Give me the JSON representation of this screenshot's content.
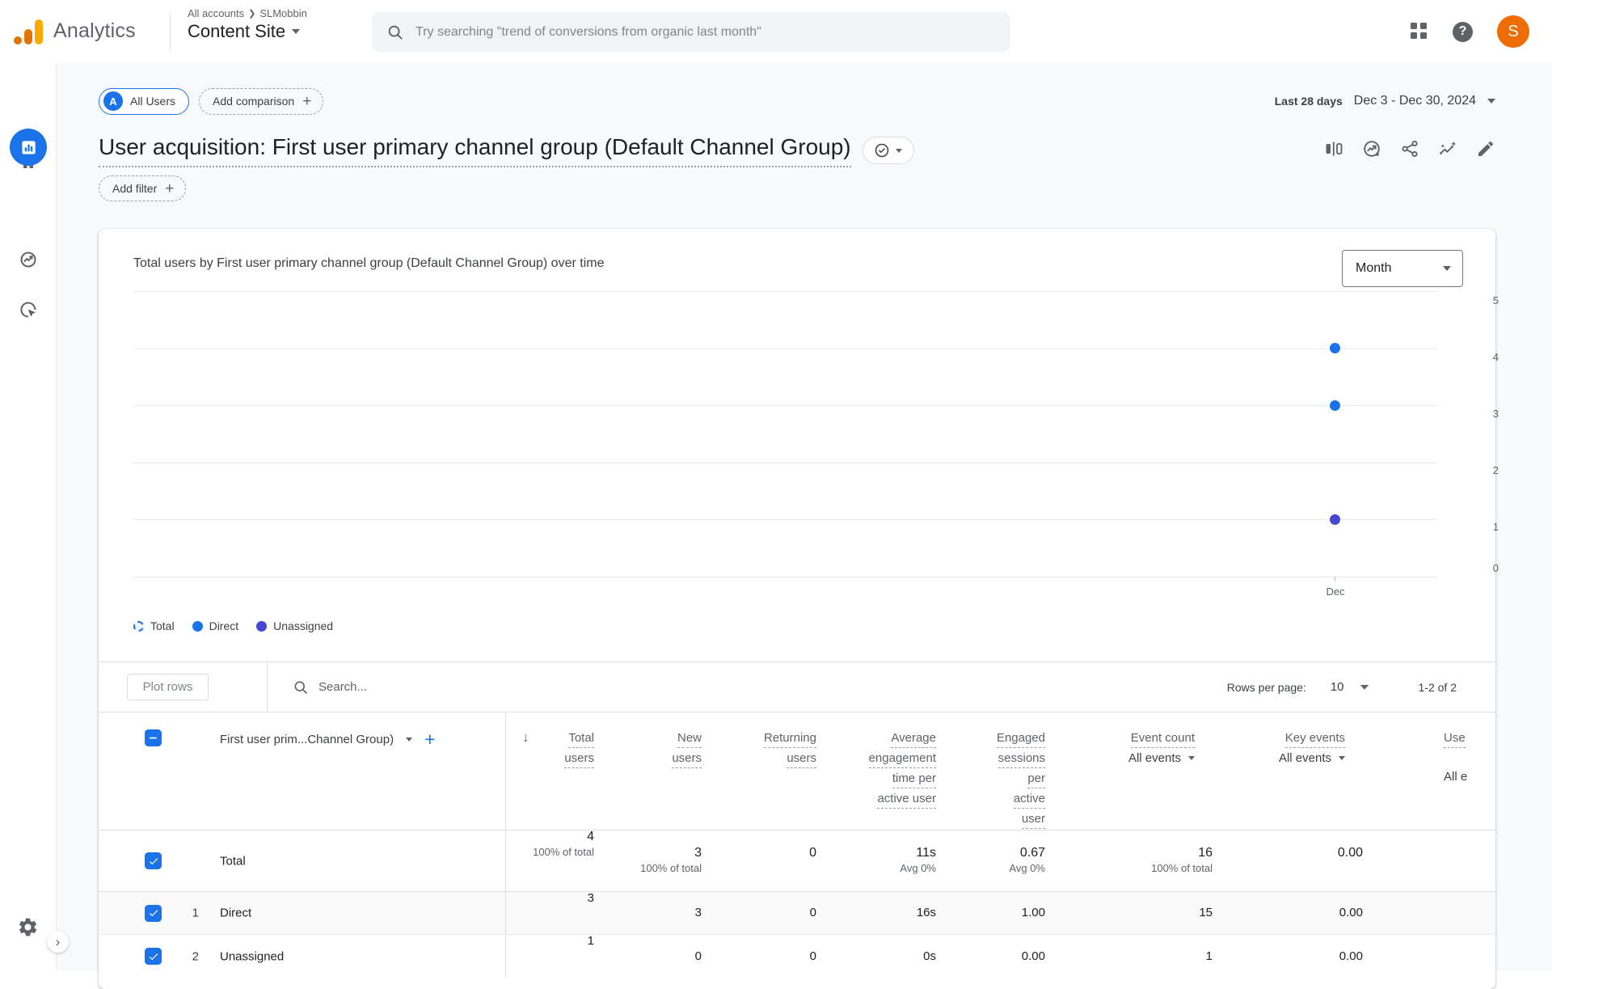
{
  "header": {
    "product": "Analytics",
    "breadcrumb": {
      "scope": "All accounts",
      "account": "SLMobbin"
    },
    "property_name": "Content Site",
    "search_placeholder": "Try searching \"trend of conversions from organic last month\"",
    "avatar_letter": "S"
  },
  "sidebar": {
    "items": [
      "home",
      "reports",
      "explore",
      "advertising"
    ],
    "active": "reports"
  },
  "toolbar": {
    "segment": {
      "avatar": "A",
      "label": "All Users"
    },
    "add_comparison": "Add comparison",
    "date": {
      "preset": "Last 28 days",
      "range": "Dec 3 - Dec 30, 2024"
    }
  },
  "report": {
    "title": "User acquisition: First user primary channel group (Default Channel Group)",
    "add_filter": "Add filter"
  },
  "chart_data": {
    "type": "line",
    "title": "Total users by First user primary channel group (Default Channel Group) over time",
    "granularity": "Month",
    "x": [
      "Dec"
    ],
    "series": [
      {
        "name": "Total",
        "values": [
          4
        ]
      },
      {
        "name": "Direct",
        "values": [
          3
        ]
      },
      {
        "name": "Unassigned",
        "values": [
          1
        ]
      }
    ],
    "colors": [
      "#1a73e8",
      "#1a73e8",
      "#4746d3"
    ],
    "ylim": [
      0,
      5
    ],
    "y_ticks": [
      5,
      4,
      3,
      2,
      1,
      0
    ],
    "legend_position": "bottom-left",
    "grid": true
  },
  "table": {
    "plot_rows": "Plot rows",
    "search_placeholder": "Search...",
    "rows_per_page_label": "Rows per page:",
    "rows_per_page_value": "10",
    "range": "1-2 of 2",
    "dimension_header": "First user prim...Channel Group)",
    "headers": {
      "total_users": [
        "Total",
        "users"
      ],
      "new_users": [
        "New",
        "users"
      ],
      "returning_users": [
        "Returning",
        "users"
      ],
      "avg_engagement": [
        "Average",
        "engagement",
        "time per",
        "active user"
      ],
      "engaged_sessions": [
        "Engaged",
        "sessions",
        "per",
        "active",
        "user"
      ],
      "event_count": {
        "label": "Event count",
        "filter": "All events"
      },
      "key_events": {
        "label": "Key events",
        "filter": "All events"
      },
      "users_cut": {
        "label": "Use",
        "filter": "All e"
      }
    },
    "total_row": {
      "label": "Total",
      "cells": [
        {
          "v": "4",
          "sub": "100% of total"
        },
        {
          "v": "3",
          "sub": "100% of total"
        },
        {
          "v": "0",
          "sub": ""
        },
        {
          "v": "11s",
          "sub": "Avg 0%"
        },
        {
          "v": "0.67",
          "sub": "Avg 0%"
        },
        {
          "v": "16",
          "sub": "100% of total"
        },
        {
          "v": "0.00",
          "sub": ""
        }
      ]
    },
    "rows": [
      {
        "num": "1",
        "label": "Direct",
        "cells": [
          "3",
          "3",
          "0",
          "16s",
          "1.00",
          "15",
          "0.00"
        ]
      },
      {
        "num": "2",
        "label": "Unassigned",
        "cells": [
          "1",
          "0",
          "0",
          "0s",
          "0.00",
          "1",
          "0.00"
        ]
      }
    ]
  },
  "colors": {
    "accent_blue": "#1a73e8",
    "unassigned_series": "#4746d3",
    "avatar_orange": "#ef6c00",
    "logo_yellow": "#f9ab00",
    "logo_orange": "#e37400",
    "content_bg": "#f8f9fa"
  }
}
